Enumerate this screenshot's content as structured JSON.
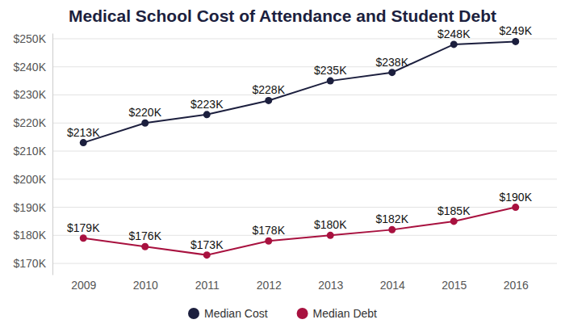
{
  "chart_data": {
    "type": "line",
    "title": "Medical School Cost of Attendance and Student Debt",
    "categories": [
      "2009",
      "2010",
      "2011",
      "2012",
      "2013",
      "2014",
      "2015",
      "2016"
    ],
    "series": [
      {
        "name": "Median Cost",
        "color": "#1c1f3e",
        "marker": "circle",
        "line_style": "solid",
        "values": [
          213,
          220,
          223,
          228,
          235,
          238,
          248,
          249
        ],
        "value_labels": [
          "$213K",
          "$220K",
          "$223K",
          "$228K",
          "$235K",
          "$238K",
          "$248K",
          "$249K"
        ]
      },
      {
        "name": "Median Debt",
        "color": "#a8113f",
        "marker": "circle",
        "line_style": "solid",
        "values": [
          179,
          176,
          173,
          178,
          180,
          182,
          185,
          190
        ],
        "value_labels": [
          "$179K",
          "$176K",
          "$173K",
          "$178K",
          "$180K",
          "$182K",
          "$185K",
          "$190K"
        ]
      }
    ],
    "ylim": [
      166,
      252
    ],
    "yticks": [
      {
        "value": 170,
        "label": "$170K"
      },
      {
        "value": 180,
        "label": "$180K"
      },
      {
        "value": 190,
        "label": "$190K"
      },
      {
        "value": 200,
        "label": "$200K"
      },
      {
        "value": 210,
        "label": "$210K"
      },
      {
        "value": 220,
        "label": "$220K"
      },
      {
        "value": 230,
        "label": "$230K"
      },
      {
        "value": 240,
        "label": "$240K"
      },
      {
        "value": 250,
        "label": "$250K"
      }
    ],
    "grid": true,
    "legend": "bottom",
    "data_labels": true
  }
}
